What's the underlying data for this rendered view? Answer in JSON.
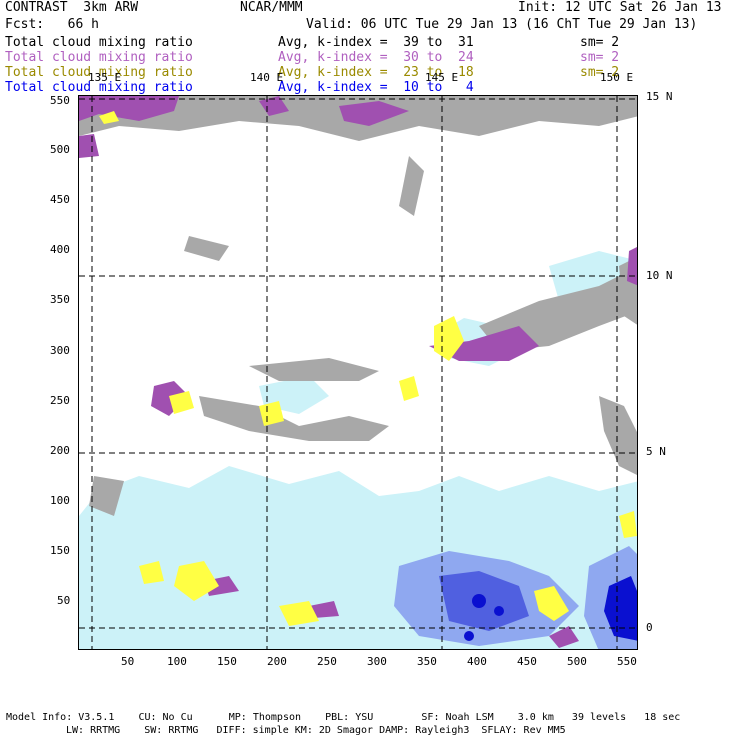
{
  "header": {
    "app": "CONTRAST  3km ARW",
    "org": "NCAR/MMM",
    "init": "Init: 12 UTC Sat 26 Jan 13",
    "fcst": "Fcst:   66 h",
    "valid": "Valid: 06 UTC Tue 29 Jan 13 (16 ChT Tue 29 Jan 13)"
  },
  "fields": [
    {
      "name": "Total cloud mixing ratio",
      "avg": "Avg, k-index =  39 to  31",
      "sm": "sm= 2",
      "color": "#000000"
    },
    {
      "name": "Total cloud mixing ratio",
      "avg": "Avg, k-index =  30 to  24",
      "sm": "sm= 2",
      "color": "#b060c0"
    },
    {
      "name": "Total cloud mixing ratio",
      "avg": "Avg, k-index =  23 to  18",
      "sm": "sm= 2",
      "color": "#9a8a00"
    },
    {
      "name": "Total cloud mixing ratio",
      "avg": "Avg, k-index =  10 to   4",
      "sm": "",
      "color": "#0000ee"
    }
  ],
  "map": {
    "lon_labels": [
      "135 E",
      "140 E",
      "145 E",
      "150 E"
    ],
    "lat_labels": [
      "15 N",
      "10 N",
      "5 N",
      "0"
    ],
    "x_ticks": [
      "50",
      "100",
      "150",
      "200",
      "250",
      "300",
      "350",
      "400",
      "450",
      "500",
      "550"
    ],
    "y_ticks": [
      "550",
      "500",
      "450",
      "400",
      "350",
      "300",
      "250",
      "200",
      "150",
      "100",
      "50"
    ],
    "colors": {
      "gray": "#a8a8a8",
      "purple": "#a050b0",
      "yellow": "#ffff44",
      "lightcyan": "#ccf2f8",
      "blue": "#3040e0",
      "darkblue": "#0a10d0"
    }
  },
  "footer": {
    "line1": "Model Info: V3.5.1    CU: No Cu      MP: Thompson    PBL: YSU        SF: Noah LSM    3.0 km   39 levels   18 sec",
    "line2": "LW: RRTMG    SW: RRTMG   DIFF: simple KM: 2D Smagor DAMP: Rayleigh3  SFLAY: Rev MM5"
  }
}
